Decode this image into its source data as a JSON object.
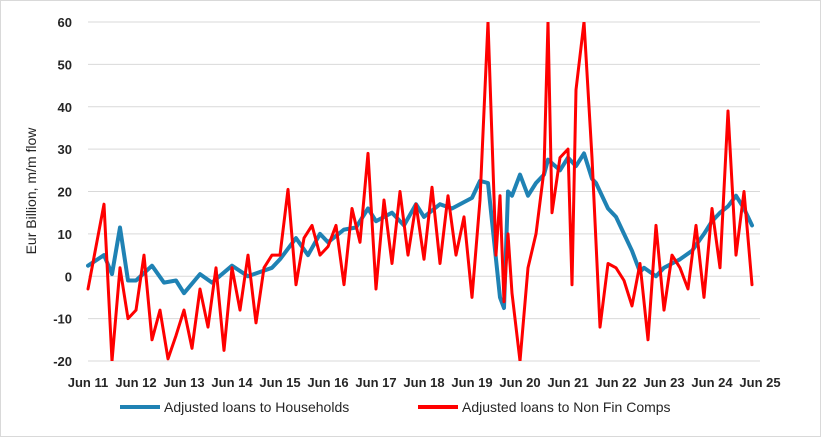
{
  "chart_data": {
    "type": "line",
    "title": "",
    "xlabel": "",
    "ylabel": "Eur Billion, m/m flow",
    "ylim": [
      -20,
      60
    ],
    "yticks": [
      60,
      50,
      40,
      30,
      20,
      10,
      0,
      -10,
      -20
    ],
    "xtick_labels": [
      "Jun 11",
      "Jun 12",
      "Jun 13",
      "Jun 14",
      "Jun 15",
      "Jun 16",
      "Jun 17",
      "Jun 18",
      "Jun 19",
      "Jun 20",
      "Jun 21",
      "Jun 22",
      "Jun 23",
      "Jun 24",
      "Jun 25"
    ],
    "grid": "horizontal",
    "legend_position": "bottom",
    "series": [
      {
        "name": "Adjusted loans to Households",
        "color": "#1f82b4",
        "x": [
          "2011-06",
          "2011-10",
          "2011-12",
          "2012-02",
          "2012-04",
          "2012-06",
          "2012-10",
          "2013-01",
          "2013-04",
          "2013-06",
          "2013-10",
          "2014-01",
          "2014-06",
          "2014-10",
          "2015-01",
          "2015-04",
          "2015-06",
          "2015-10",
          "2016-01",
          "2016-04",
          "2016-06",
          "2016-10",
          "2017-01",
          "2017-04",
          "2017-06",
          "2017-10",
          "2018-01",
          "2018-04",
          "2018-06",
          "2018-10",
          "2019-01",
          "2019-04",
          "2019-06",
          "2019-08",
          "2019-10",
          "2020-01",
          "2020-02",
          "2020-03",
          "2020-04",
          "2020-06",
          "2020-08",
          "2020-10",
          "2020-12",
          "2021-01",
          "2021-04",
          "2021-06",
          "2021-08",
          "2021-10",
          "2021-12",
          "2022-01",
          "2022-04",
          "2022-06",
          "2022-08",
          "2022-10",
          "2022-12",
          "2023-01",
          "2023-04",
          "2023-06",
          "2023-08",
          "2023-10",
          "2024-01",
          "2024-04",
          "2024-06",
          "2024-08",
          "2024-10",
          "2024-12",
          "2025-02",
          "2025-04"
        ],
        "values": [
          2.5,
          5.0,
          0.5,
          11.5,
          -1.0,
          -1.0,
          2.5,
          -1.5,
          -1.0,
          -4.0,
          0.5,
          -1.5,
          2.5,
          0.0,
          1.0,
          2.0,
          4.0,
          9.0,
          5.0,
          10.0,
          8.0,
          11.0,
          11.5,
          16.0,
          13.0,
          15.0,
          12.0,
          17.0,
          14.0,
          17.0,
          16.0,
          17.5,
          18.5,
          22.5,
          22.0,
          -5.0,
          -7.5,
          20.0,
          19.0,
          24.0,
          19.0,
          22.0,
          24.0,
          27.5,
          25.0,
          28.0,
          26.0,
          29.0,
          23.0,
          22.0,
          16.0,
          14.0,
          10.0,
          6.0,
          1.0,
          2.0,
          0.0,
          2.0,
          3.0,
          4.0,
          6.0,
          10.0,
          13.0,
          15.0,
          16.5,
          19.0,
          16.0,
          12.0
        ]
      },
      {
        "name": "Adjusted loans to Non Fin Comps",
        "color": "#ff0000",
        "x": [
          "2011-06",
          "2011-10",
          "2011-12",
          "2012-02",
          "2012-04",
          "2012-06",
          "2012-08",
          "2012-10",
          "2012-12",
          "2013-02",
          "2013-04",
          "2013-06",
          "2013-08",
          "2013-10",
          "2013-12",
          "2014-02",
          "2014-04",
          "2014-06",
          "2014-08",
          "2014-10",
          "2014-12",
          "2015-02",
          "2015-04",
          "2015-06",
          "2015-08",
          "2015-10",
          "2015-12",
          "2016-02",
          "2016-04",
          "2016-06",
          "2016-08",
          "2016-10",
          "2016-12",
          "2017-02",
          "2017-04",
          "2017-06",
          "2017-08",
          "2017-10",
          "2017-12",
          "2018-02",
          "2018-04",
          "2018-06",
          "2018-08",
          "2018-10",
          "2018-12",
          "2019-02",
          "2019-04",
          "2019-06",
          "2019-08",
          "2019-10",
          "2019-12",
          "2020-01",
          "2020-02",
          "2020-03",
          "2020-04",
          "2020-06",
          "2020-08",
          "2020-10",
          "2020-12",
          "2021-01",
          "2021-02",
          "2021-04",
          "2021-06",
          "2021-07",
          "2021-08",
          "2021-10",
          "2021-12",
          "2022-02",
          "2022-04",
          "2022-06",
          "2022-08",
          "2022-10",
          "2022-12",
          "2023-02",
          "2023-04",
          "2023-06",
          "2023-08",
          "2023-10",
          "2023-12",
          "2024-02",
          "2024-04",
          "2024-06",
          "2024-08",
          "2024-10",
          "2024-12",
          "2025-02",
          "2025-04"
        ],
        "values": [
          -3.0,
          17.0,
          -20.0,
          2.0,
          -10.0,
          -8.0,
          5.0,
          -15.0,
          -8.0,
          -19.5,
          -14.0,
          -8.0,
          -17.0,
          -3.0,
          -12.0,
          2.0,
          -17.5,
          2.0,
          -8.0,
          5.0,
          -11.0,
          2.0,
          5.0,
          5.0,
          20.5,
          -2.0,
          9.0,
          12.0,
          5.0,
          7.0,
          12.0,
          -2.0,
          16.0,
          8.0,
          29.0,
          -3.0,
          18.0,
          3.0,
          20.0,
          5.0,
          17.0,
          4.0,
          21.0,
          3.0,
          19.0,
          5.0,
          14.0,
          -5.0,
          18.0,
          60.0,
          5.0,
          19.0,
          -6.0,
          10.0,
          -4.0,
          -20.0,
          2.0,
          10.0,
          25.0,
          60.0,
          15.0,
          28.0,
          30.0,
          -2.0,
          44.0,
          60.0,
          28.0,
          -12.0,
          3.0,
          2.0,
          -1.0,
          -7.0,
          3.0,
          -15.0,
          12.0,
          -8.0,
          5.0,
          2.0,
          -3.0,
          12.0,
          -5.0,
          16.0,
          2.0,
          39.0,
          5.0,
          20.0,
          -2.0
        ]
      }
    ]
  }
}
